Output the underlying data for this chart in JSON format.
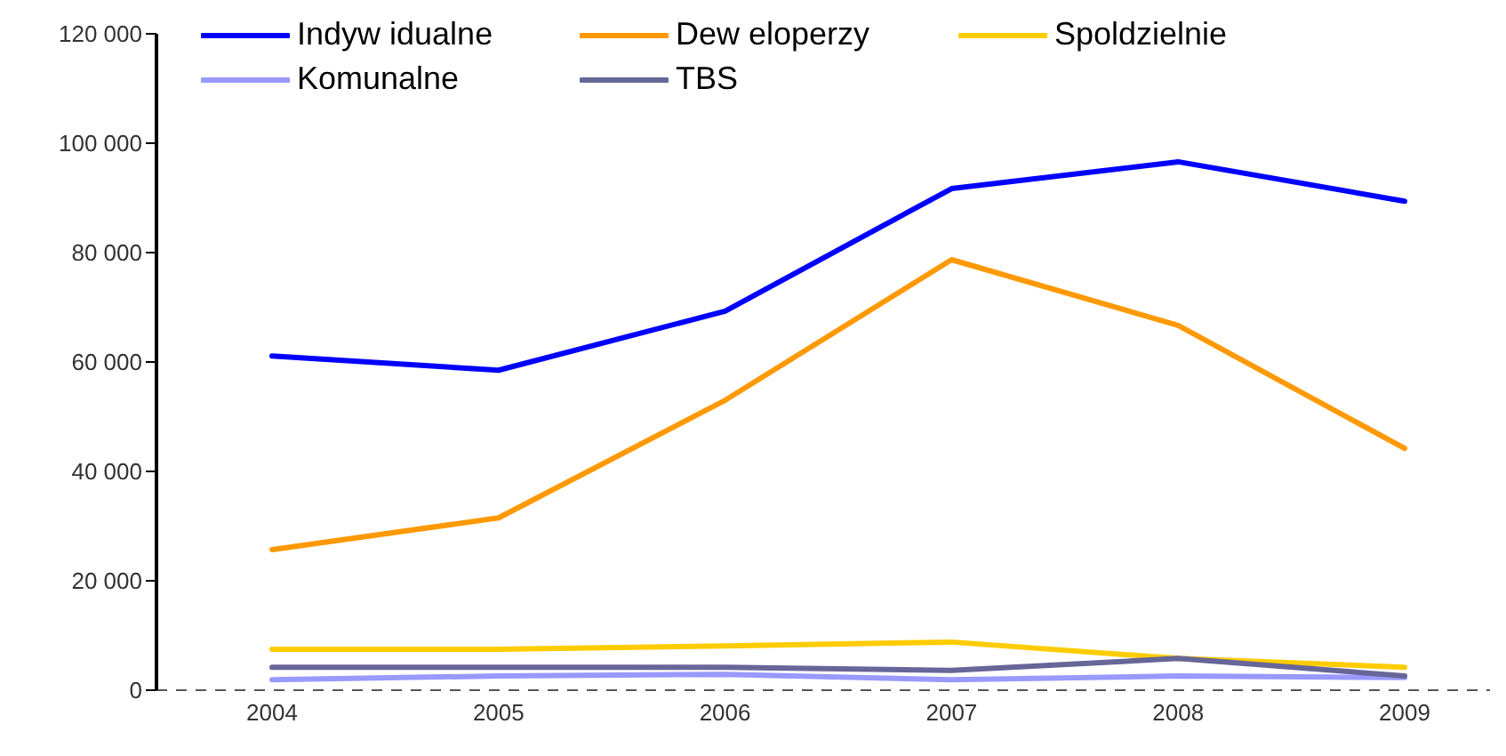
{
  "chart_data": {
    "type": "line",
    "categories": [
      "2004",
      "2005",
      "2006",
      "2007",
      "2008",
      "2009"
    ],
    "series": [
      {
        "name": "Indyw idualne",
        "color": "#0000ff",
        "values": [
          61100,
          58500,
          69300,
          91700,
          96600,
          89400
        ]
      },
      {
        "name": "Dew eloperzy",
        "color": "#ff9900",
        "values": [
          25700,
          31500,
          53000,
          78700,
          66700,
          44200
        ]
      },
      {
        "name": "Spoldzielnie",
        "color": "#ffcc00",
        "values": [
          7500,
          7500,
          8100,
          8800,
          5800,
          4200
        ]
      },
      {
        "name": "Komunalne",
        "color": "#9999ff",
        "values": [
          1900,
          2600,
          2900,
          1900,
          2600,
          2300
        ]
      },
      {
        "name": "TBS",
        "color": "#666699",
        "values": [
          4200,
          4200,
          4200,
          3600,
          5800,
          2600
        ]
      }
    ],
    "ylim": [
      0,
      120000
    ],
    "yticks": [
      {
        "value": 0,
        "label": "0"
      },
      {
        "value": 20000,
        "label": "20 000"
      },
      {
        "value": 40000,
        "label": "40 000"
      },
      {
        "value": 60000,
        "label": "60 000"
      },
      {
        "value": 80000,
        "label": "80 000"
      },
      {
        "value": 100000,
        "label": "100 000"
      },
      {
        "value": 120000,
        "label": "120 000"
      }
    ],
    "grid": false,
    "legend": "top",
    "marker": "none",
    "line_style": "solid"
  }
}
